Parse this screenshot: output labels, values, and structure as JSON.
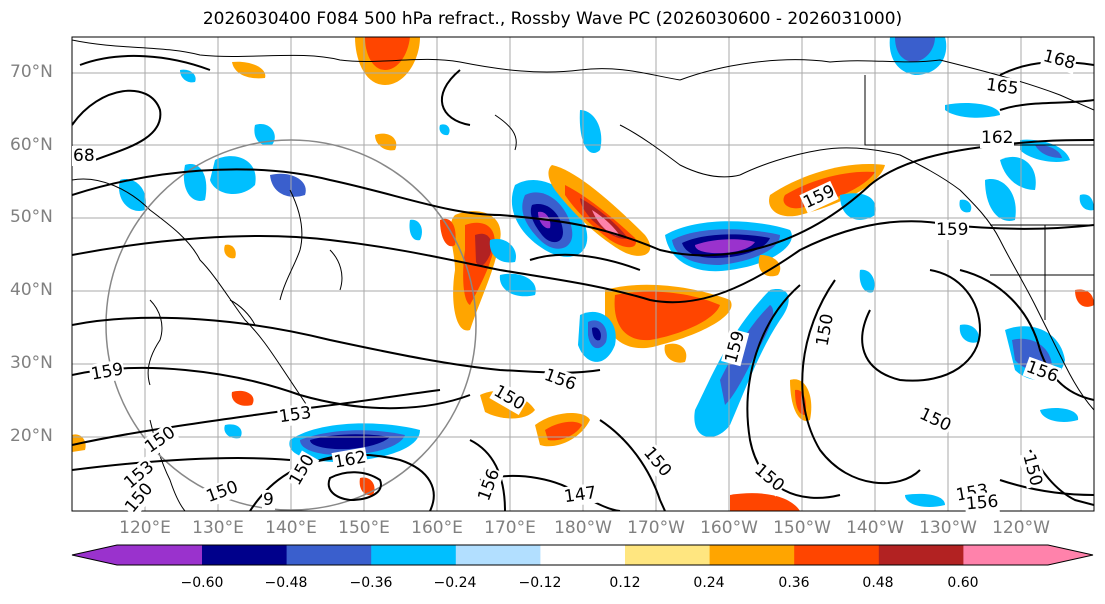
{
  "title": "2026030400 F084 500 hPa refract., Rossby Wave PC (2026030600 - 2026031000)",
  "lat_labels": [
    "70°N",
    "60°N",
    "50°N",
    "40°N",
    "30°N",
    "20°N"
  ],
  "lon_labels": [
    "120°E",
    "130°E",
    "140°E",
    "150°E",
    "160°E",
    "170°E",
    "180°W",
    "170°W",
    "160°W",
    "150°W",
    "140°W",
    "130°W",
    "120°W"
  ],
  "colorbar": {
    "colors": [
      "#9a32cd",
      "#00008b",
      "#3a5fcd",
      "#00bfff",
      "#b2dfff",
      "#ffffff",
      "#ffe680",
      "#ffa500",
      "#ff4500",
      "#b22222",
      "#ff82ab"
    ],
    "tick_labels": [
      "−0.60",
      "−0.48",
      "−0.36",
      "−0.24",
      "−0.12",
      "0.12",
      "0.24",
      "0.36",
      "0.48",
      "0.60"
    ]
  },
  "contour_labels": [
    "168",
    "165",
    "162",
    "159",
    "68",
    "159",
    "159",
    "153",
    "150",
    "153",
    "162",
    "150",
    "9",
    "150",
    "156",
    "156",
    "150",
    "147",
    "150",
    "159",
    "150",
    "150",
    "150",
    "153",
    "156",
    "156",
    "150",
    "150",
    "150"
  ]
}
